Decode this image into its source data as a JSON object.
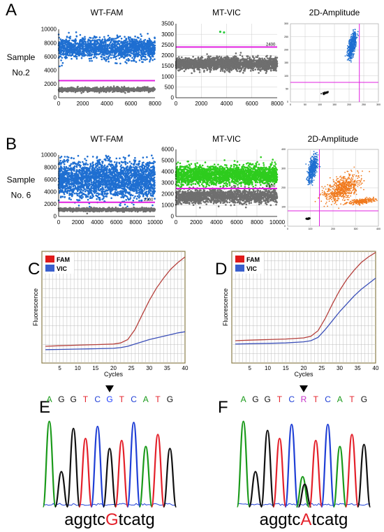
{
  "panel_letters": [
    "A",
    "B",
    "C",
    "D",
    "E",
    "F"
  ],
  "chart_data": [
    {
      "id": "A1",
      "type": "scatter",
      "title": "WT-FAM",
      "row_label": [
        "Sample",
        "No.2"
      ],
      "xlim": [
        0,
        8000
      ],
      "ylim": [
        0,
        10000
      ],
      "xticks": [
        0,
        2000,
        4000,
        6000,
        8000
      ],
      "yticks": [
        0,
        2000,
        4000,
        6000,
        8000,
        10000
      ],
      "threshold": 2500,
      "threshold_label": "",
      "clusters": [
        {
          "color": "#1f6fd1",
          "n": 1600,
          "x": [
            0,
            8000
          ],
          "y_mean": 7200,
          "y_sd": 750
        },
        {
          "color": "#6f6f6f",
          "n": 900,
          "x": [
            0,
            8000
          ],
          "y_mean": 1200,
          "y_sd": 150
        }
      ]
    },
    {
      "id": "A2",
      "type": "scatter",
      "title": "MT-VIC",
      "xlim": [
        0,
        8000
      ],
      "ylim": [
        0,
        3500
      ],
      "xticks": [
        0,
        2000,
        4000,
        6000,
        8000
      ],
      "yticks": [
        0,
        500,
        1000,
        1500,
        2000,
        2500,
        3000,
        3500
      ],
      "threshold": 2400,
      "threshold_label": "2400",
      "clusters": [
        {
          "color": "#6f6f6f",
          "n": 2200,
          "x": [
            0,
            8000
          ],
          "y_mean": 1600,
          "y_sd": 140
        }
      ],
      "points": [
        [
          3500,
          3120
        ],
        [
          3800,
          3090
        ]
      ],
      "points_color": "#2ecc40"
    },
    {
      "id": "A3",
      "type": "scatter",
      "title": "2D-Amplitude",
      "xlim": [
        0,
        300
      ],
      "ylim": [
        0,
        300
      ],
      "xticks": [
        0,
        50,
        100,
        150,
        200,
        250,
        300
      ],
      "yticks": [
        0,
        50,
        100,
        150,
        200,
        250,
        300
      ],
      "vline": 235,
      "hline": 75,
      "clusters": [
        {
          "color": "#1f6fd1",
          "n": 500,
          "x_mean": 210,
          "x_sd": 8,
          "y_mean": 215,
          "y_sd": 30
        },
        {
          "color": "#111111",
          "n": 60,
          "x_mean": 120,
          "x_sd": 6,
          "y_mean": 35,
          "y_sd": 3
        }
      ]
    },
    {
      "id": "B1",
      "type": "scatter",
      "title": "WT-FAM",
      "row_label": [
        "Sample",
        "No. 6"
      ],
      "xlim": [
        0,
        10000
      ],
      "ylim": [
        0,
        10000
      ],
      "xticks": [
        0,
        2000,
        4000,
        6000,
        8000,
        10000
      ],
      "yticks": [
        0,
        2000,
        4000,
        6000,
        8000,
        10000
      ],
      "threshold": 2300,
      "threshold_label": "2300",
      "clusters": [
        {
          "color": "#1f6fd1",
          "n": 2600,
          "x": [
            0,
            10000
          ],
          "y_mean": 6000,
          "y_sd": 1500
        },
        {
          "color": "#6f6f6f",
          "n": 900,
          "x": [
            0,
            10000
          ],
          "y_mean": 1100,
          "y_sd": 130
        }
      ]
    },
    {
      "id": "B2",
      "type": "scatter",
      "title": "MT-VIC",
      "xlim": [
        0,
        10000
      ],
      "ylim": [
        0,
        6000
      ],
      "xticks": [
        0,
        2000,
        4000,
        6000,
        8000,
        10000
      ],
      "yticks": [
        0,
        1000,
        2000,
        3000,
        4000,
        5000,
        6000
      ],
      "threshold": 2500,
      "threshold_label": "2500",
      "clusters": [
        {
          "color": "#2ecc1e",
          "n": 2000,
          "x": [
            0,
            10000
          ],
          "y_mean": 3700,
          "y_sd": 420
        },
        {
          "color": "#6f6f6f",
          "n": 1600,
          "x": [
            0,
            10000
          ],
          "y_mean": 1800,
          "y_sd": 300
        }
      ]
    },
    {
      "id": "B3",
      "type": "scatter",
      "title": "2D-Amplitude",
      "xlim": [
        0,
        400
      ],
      "ylim": [
        0,
        400
      ],
      "xticks": [
        0,
        100,
        200,
        300,
        400
      ],
      "yticks": [
        0,
        100,
        200,
        300,
        400
      ],
      "vline": 140,
      "hline": 80,
      "clusters": [
        {
          "color": "#1f6fd1",
          "n": 450,
          "x_mean": 110,
          "x_sd": 12,
          "y_mean": 300,
          "y_sd": 45
        },
        {
          "color": "#f07a1e",
          "n": 650,
          "x_mean": 240,
          "x_sd": 45,
          "y_mean": 195,
          "y_sd": 45
        },
        {
          "color": "#f07a1e",
          "n": 220,
          "x_mean": 330,
          "x_sd": 35,
          "y_mean": 130,
          "y_sd": 10
        },
        {
          "color": "#111111",
          "n": 60,
          "x_mean": 90,
          "x_sd": 6,
          "y_mean": 40,
          "y_sd": 3
        }
      ]
    },
    {
      "id": "C",
      "type": "line",
      "xlabel": "Cycles",
      "ylabel": "Fluorescence",
      "xlim": [
        0,
        40
      ],
      "xticks": [
        5,
        10,
        15,
        20,
        25,
        30,
        35,
        40
      ],
      "ylim": [
        0,
        1
      ],
      "legend": [
        {
          "name": "FAM",
          "color": "#e01a1a"
        },
        {
          "name": "VIC",
          "color": "#3a5fcd"
        }
      ],
      "series": [
        {
          "name": "FAM",
          "color": "#b5403c",
          "x": [
            1,
            5,
            10,
            15,
            20,
            22,
            24,
            26,
            28,
            30,
            32,
            34,
            36,
            38,
            40
          ],
          "y": [
            0.15,
            0.155,
            0.16,
            0.165,
            0.17,
            0.18,
            0.21,
            0.3,
            0.43,
            0.56,
            0.67,
            0.76,
            0.84,
            0.9,
            0.95
          ]
        },
        {
          "name": "VIC",
          "color": "#3b4fb8",
          "x": [
            1,
            5,
            10,
            15,
            20,
            22,
            24,
            26,
            28,
            30,
            32,
            34,
            36,
            38,
            40
          ],
          "y": [
            0.12,
            0.122,
            0.125,
            0.128,
            0.132,
            0.138,
            0.15,
            0.17,
            0.19,
            0.21,
            0.225,
            0.24,
            0.255,
            0.27,
            0.28
          ]
        }
      ]
    },
    {
      "id": "D",
      "type": "line",
      "xlabel": "Cycles",
      "ylabel": "Fluorescence",
      "xlim": [
        0,
        40
      ],
      "xticks": [
        5,
        10,
        15,
        20,
        25,
        30,
        35,
        40
      ],
      "ylim": [
        0,
        1
      ],
      "legend": [
        {
          "name": "FAM",
          "color": "#e01a1a"
        },
        {
          "name": "VIC",
          "color": "#3a5fcd"
        }
      ],
      "series": [
        {
          "name": "FAM",
          "color": "#b5403c",
          "x": [
            1,
            5,
            10,
            15,
            20,
            22,
            24,
            26,
            28,
            30,
            32,
            34,
            36,
            38,
            40
          ],
          "y": [
            0.2,
            0.205,
            0.21,
            0.215,
            0.225,
            0.24,
            0.29,
            0.4,
            0.53,
            0.65,
            0.75,
            0.83,
            0.9,
            0.95,
            0.99
          ]
        },
        {
          "name": "VIC",
          "color": "#3b4fb8",
          "x": [
            1,
            5,
            10,
            15,
            20,
            22,
            24,
            26,
            28,
            30,
            32,
            34,
            36,
            38,
            40
          ],
          "y": [
            0.17,
            0.173,
            0.176,
            0.18,
            0.19,
            0.2,
            0.23,
            0.3,
            0.38,
            0.46,
            0.53,
            0.6,
            0.66,
            0.71,
            0.76
          ]
        }
      ]
    },
    {
      "id": "E",
      "type": "chromatogram",
      "bases": [
        "A",
        "G",
        "G",
        "T",
        "C",
        "G",
        "T",
        "C",
        "A",
        "T",
        "G"
      ],
      "highlight_index": 5,
      "highlight_color": "#1f3fff",
      "sequence_label": {
        "before": "aggtc",
        "variant": "G",
        "after": "tcatg"
      },
      "variant_color": "#e4202a",
      "peaks": [
        {
          "base": "A",
          "height": 0.85
        },
        {
          "base": "G",
          "height": 0.35
        },
        {
          "base": "G",
          "height": 0.78
        },
        {
          "base": "T",
          "height": 0.68
        },
        {
          "base": "C",
          "height": 0.8
        },
        {
          "base": "G",
          "height": 0.58
        },
        {
          "base": "T",
          "height": 0.66
        },
        {
          "base": "C",
          "height": 0.84
        },
        {
          "base": "A",
          "height": 0.6
        },
        {
          "base": "T",
          "height": 0.72
        },
        {
          "base": "G",
          "height": 0.58
        }
      ]
    },
    {
      "id": "F",
      "type": "chromatogram",
      "bases": [
        "A",
        "G",
        "G",
        "T",
        "C",
        "R",
        "T",
        "C",
        "A",
        "T",
        "G"
      ],
      "highlight_index": 5,
      "highlight_color": "#c430c8",
      "sequence_label": {
        "before": "aggtc",
        "variant": "A",
        "after": "tcatg"
      },
      "variant_color": "#e4202a",
      "peaks": [
        {
          "base": "A",
          "height": 0.85
        },
        {
          "base": "G",
          "height": 0.35
        },
        {
          "base": "G",
          "height": 0.76
        },
        {
          "base": "T",
          "height": 0.68
        },
        {
          "base": "C",
          "height": 0.82
        },
        {
          "base": "AG",
          "height": 0.3
        },
        {
          "base": "T",
          "height": 0.66
        },
        {
          "base": "C",
          "height": 0.82
        },
        {
          "base": "A",
          "height": 0.6
        },
        {
          "base": "T",
          "height": 0.72
        },
        {
          "base": "G",
          "height": 0.62
        }
      ]
    }
  ]
}
